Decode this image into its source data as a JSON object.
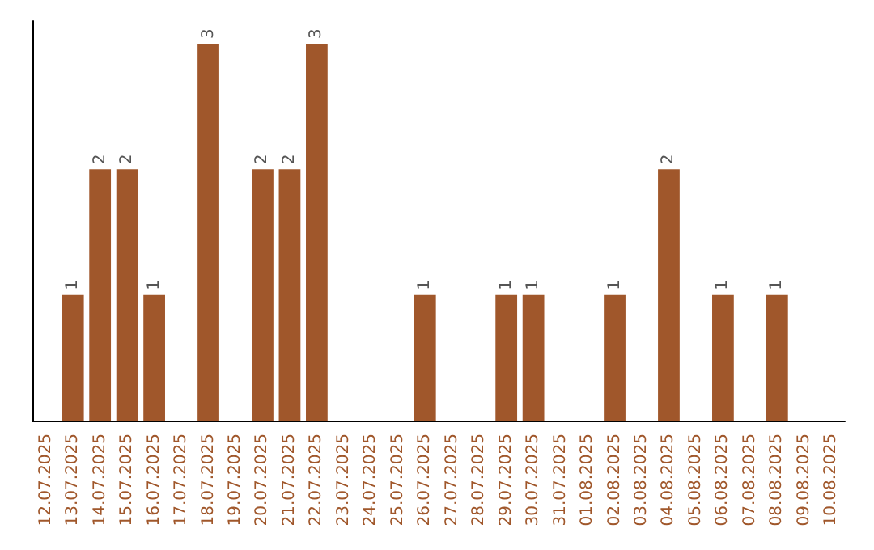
{
  "chart_data": {
    "type": "bar",
    "categories": [
      "12.07.2025",
      "13.07.2025",
      "14.07.2025",
      "15.07.2025",
      "16.07.2025",
      "17.07.2025",
      "18.07.2025",
      "19.07.2025",
      "20.07.2025",
      "21.07.2025",
      "22.07.2025",
      "23.07.2025",
      "24.07.2025",
      "25.07.2025",
      "26.07.2025",
      "27.07.2025",
      "28.07.2025",
      "29.07.2025",
      "30.07.2025",
      "31.07.2025",
      "01.08.2025",
      "02.08.2025",
      "03.08.2025",
      "04.08.2025",
      "05.08.2025",
      "06.08.2025",
      "07.08.2025",
      "08.08.2025",
      "09.08.2025",
      "10.08.2025"
    ],
    "values": [
      0,
      1,
      2,
      2,
      1,
      0,
      3,
      0,
      2,
      2,
      3,
      0,
      0,
      0,
      1,
      0,
      0,
      1,
      1,
      0,
      0,
      1,
      0,
      2,
      0,
      1,
      0,
      1,
      0,
      0
    ],
    "value_labels": [
      null,
      "1",
      "2",
      "2",
      "1",
      null,
      "3",
      null,
      "2",
      "2",
      "3",
      null,
      null,
      null,
      "1",
      null,
      null,
      "1",
      "1",
      null,
      null,
      "1",
      null,
      "2",
      null,
      "1",
      null,
      "1",
      null,
      null
    ],
    "color": "#a0572b",
    "tick_labels": "x",
    "grid": false
  }
}
